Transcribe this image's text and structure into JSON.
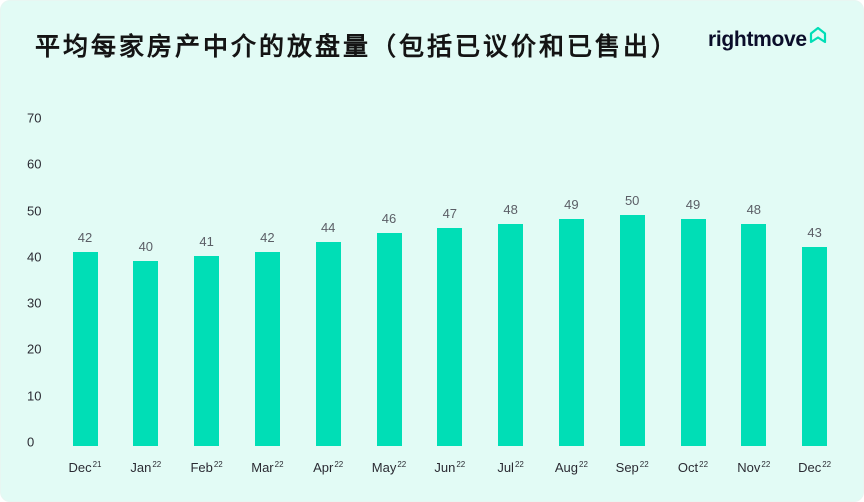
{
  "header": {
    "title": "平均每家房产中介的放盘量（包括已议价和已售出）",
    "logo_text": "rightmove",
    "logo_icon": "house-outline-icon"
  },
  "colors": {
    "background": "#e2fbf5",
    "bar": "#00deb6",
    "logo_text": "#0b0d2a",
    "logo_icon": "#00deb6"
  },
  "chart_data": {
    "type": "bar",
    "title": "平均每家房产中介的放盘量（包括已议价和已售出）",
    "xlabel": "",
    "ylabel": "",
    "ylim": [
      0,
      70
    ],
    "yticks": [
      0,
      10,
      20,
      30,
      40,
      50,
      60,
      70
    ],
    "grid": false,
    "legend": null,
    "categories": [
      {
        "month": "Dec",
        "year": "21"
      },
      {
        "month": "Jan",
        "year": "22"
      },
      {
        "month": "Feb",
        "year": "22"
      },
      {
        "month": "Mar",
        "year": "22"
      },
      {
        "month": "Apr",
        "year": "22"
      },
      {
        "month": "May",
        "year": "22"
      },
      {
        "month": "Jun",
        "year": "22"
      },
      {
        "month": "Jul",
        "year": "22"
      },
      {
        "month": "Aug",
        "year": "22"
      },
      {
        "month": "Sep",
        "year": "22"
      },
      {
        "month": "Oct",
        "year": "22"
      },
      {
        "month": "Nov",
        "year": "22"
      },
      {
        "month": "Dec",
        "year": "22"
      }
    ],
    "values": [
      42,
      40,
      41,
      42,
      44,
      46,
      47,
      48,
      49,
      50,
      49,
      48,
      43
    ]
  }
}
